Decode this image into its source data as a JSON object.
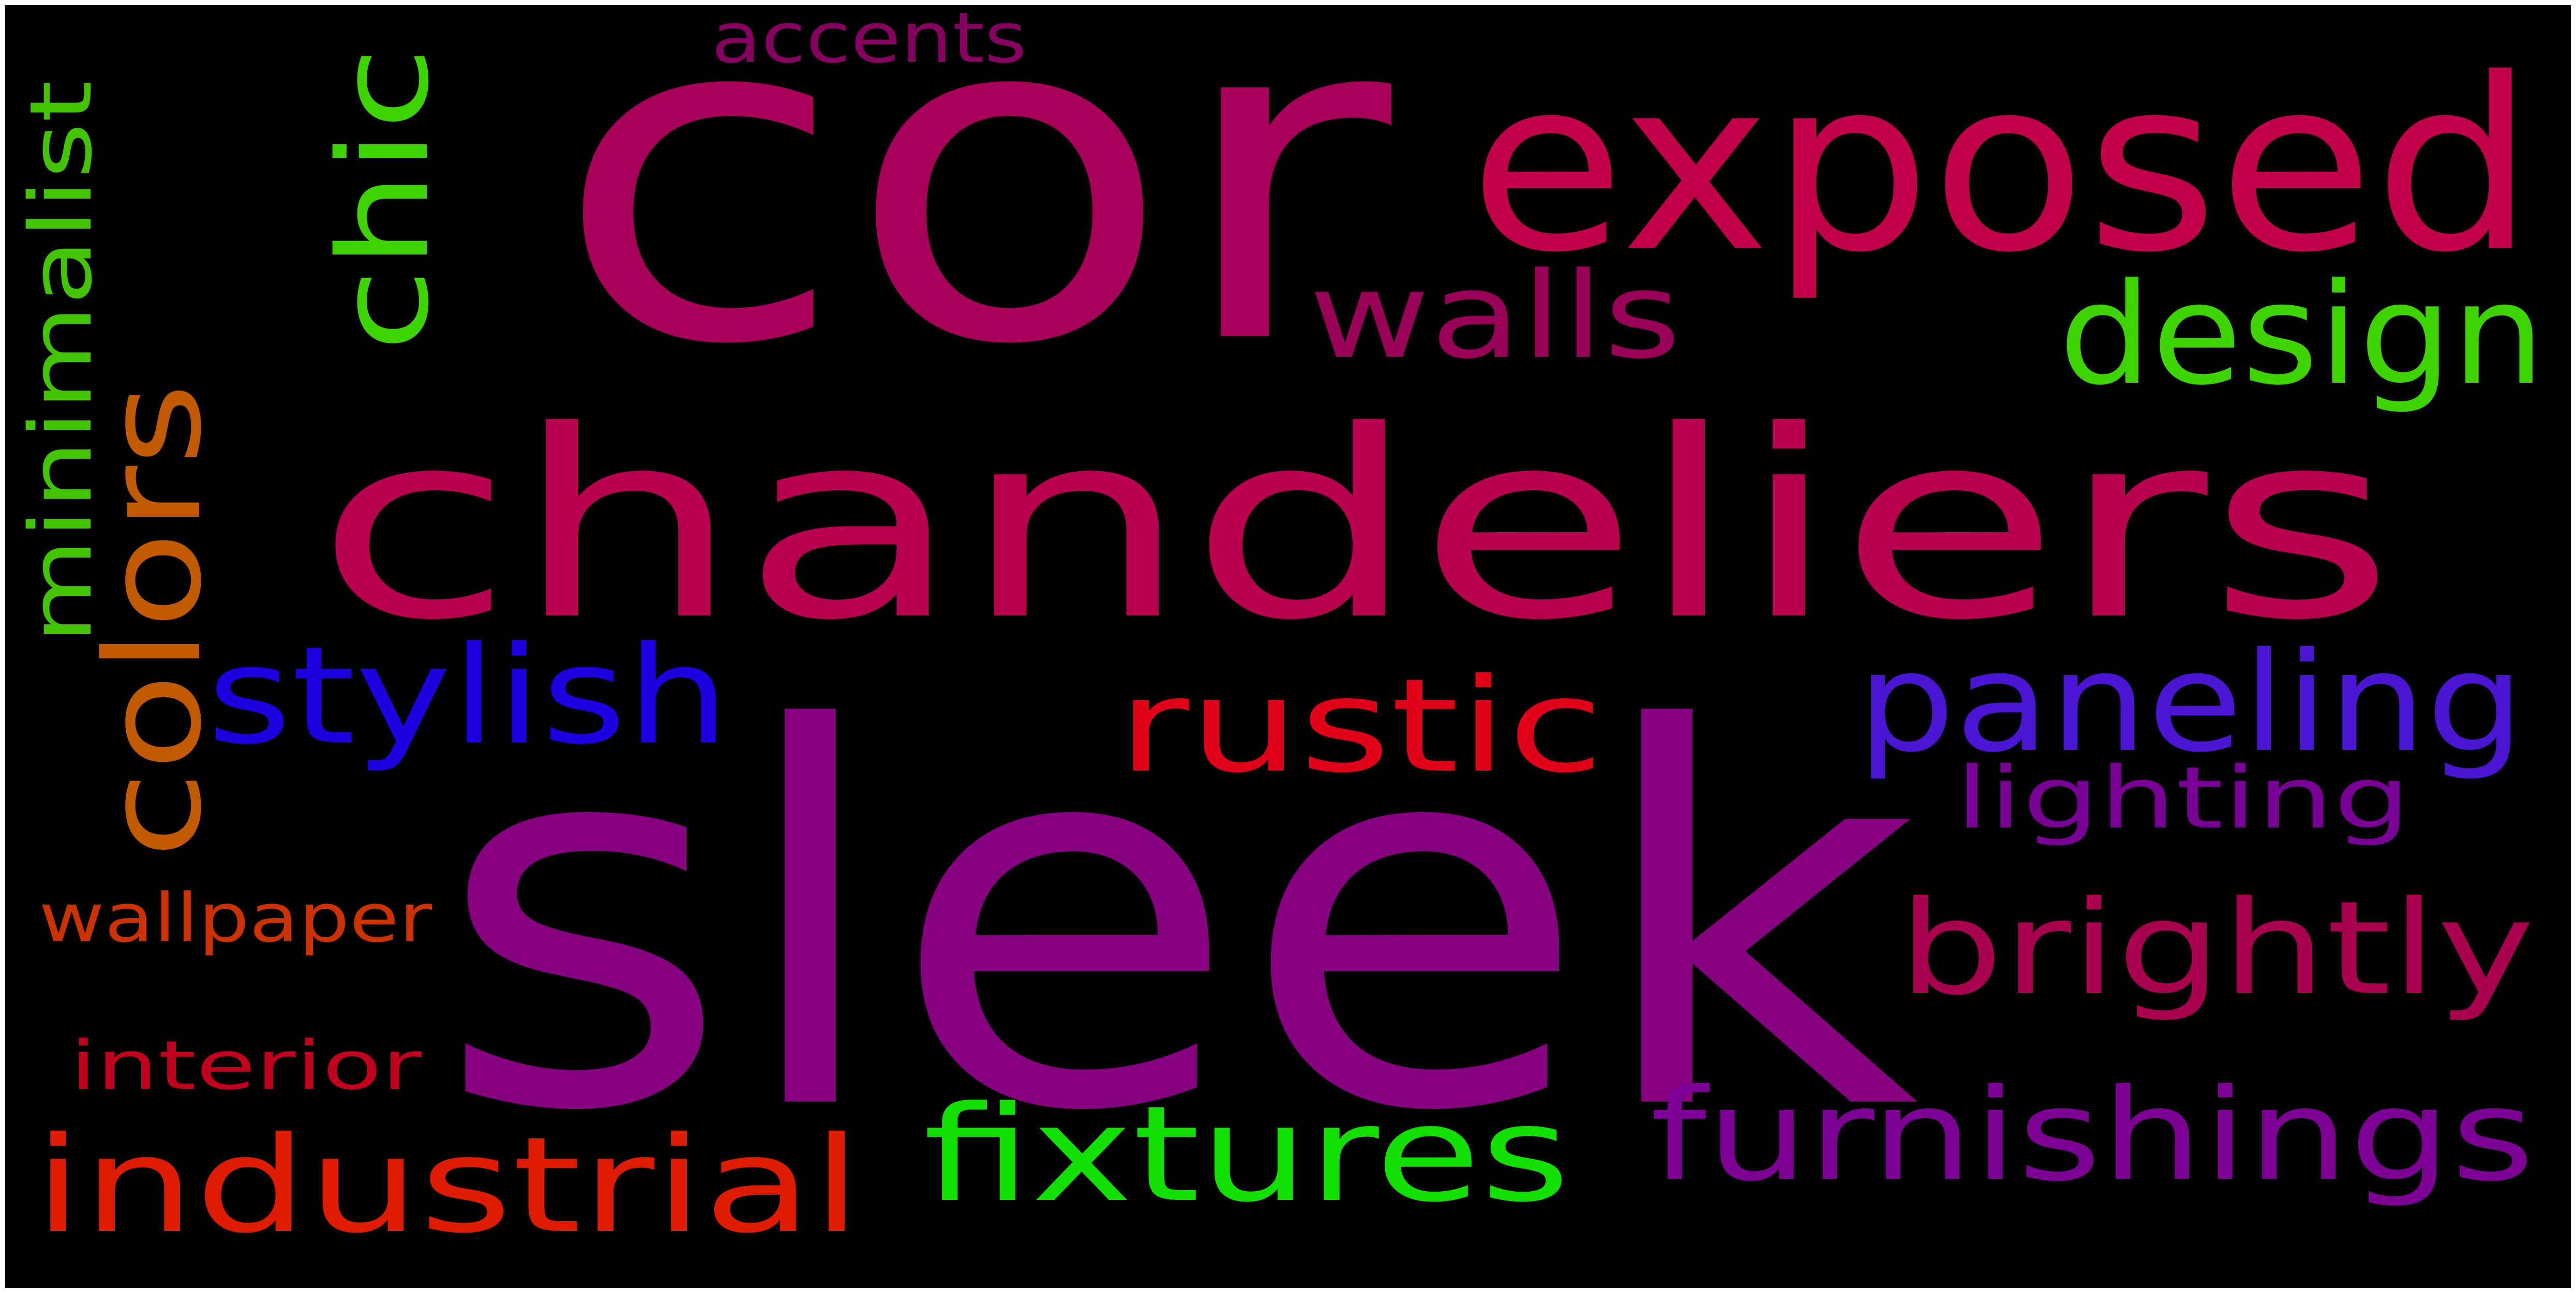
{
  "words": [
    {
      "key": "cor",
      "text": "cor",
      "color": "#a8005a"
    },
    {
      "key": "exposed",
      "text": "exposed",
      "color": "#c2004a"
    },
    {
      "key": "chandeliers",
      "text": "chandeliers",
      "color": "#b8004e"
    },
    {
      "key": "sleek",
      "text": "sleek",
      "color": "#86007f"
    },
    {
      "key": "walls",
      "text": "walls",
      "color": "#990057"
    },
    {
      "key": "design",
      "text": "design",
      "color": "#3ed400"
    },
    {
      "key": "chic",
      "text": "chic",
      "color": "#3ed400"
    },
    {
      "key": "colors",
      "text": "colors",
      "color": "#c25a00"
    },
    {
      "key": "minimalist",
      "text": "minimalist",
      "color": "#42c400"
    },
    {
      "key": "accents",
      "text": "accents",
      "color": "#860060"
    },
    {
      "key": "stylish",
      "text": "stylish",
      "color": "#1d00e0"
    },
    {
      "key": "rustic",
      "text": "rustic",
      "color": "#e00018"
    },
    {
      "key": "paneling",
      "text": "paneling",
      "color": "#4a16d4"
    },
    {
      "key": "lighting",
      "text": "lighting",
      "color": "#780094"
    },
    {
      "key": "brightly",
      "text": "brightly",
      "color": "#a8004e"
    },
    {
      "key": "wallpaper",
      "text": "wallpaper",
      "color": "#cc3200"
    },
    {
      "key": "interior",
      "text": "interior",
      "color": "#c0001c"
    },
    {
      "key": "industrial",
      "text": "industrial",
      "color": "#e01c00"
    },
    {
      "key": "fixtures",
      "text": "fixtures",
      "color": "#12e000"
    },
    {
      "key": "furnishings",
      "text": "furnishings",
      "color": "#7c0094"
    }
  ]
}
